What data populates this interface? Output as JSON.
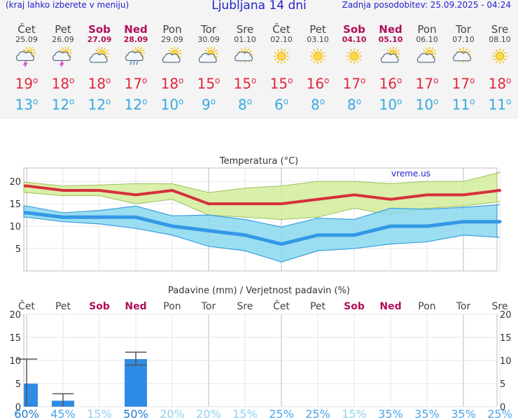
{
  "header": {
    "left_note": "(kraj lahko izberete v meniju)",
    "title": "Ljubljana 14 dni",
    "updated": "Zadnja posodobitev: 25.09.2025 - 04:24"
  },
  "days": [
    {
      "name": "Čet",
      "date": "25.09",
      "weekend": false,
      "icon": "thunderstorm-icon",
      "tmax": "19",
      "tmin": "13"
    },
    {
      "name": "Pet",
      "date": "26.09",
      "weekend": false,
      "icon": "thunderstorm-icon",
      "tmax": "18",
      "tmin": "12"
    },
    {
      "name": "Sob",
      "date": "27.09",
      "weekend": true,
      "icon": "partly-cloudy-icon",
      "tmax": "18",
      "tmin": "12"
    },
    {
      "name": "Ned",
      "date": "28.09",
      "weekend": true,
      "icon": "rain-shower-icon",
      "tmax": "17",
      "tmin": "12"
    },
    {
      "name": "Pon",
      "date": "29.09",
      "weekend": false,
      "icon": "partly-cloudy-icon",
      "tmax": "18",
      "tmin": "10"
    },
    {
      "name": "Tor",
      "date": "30.09",
      "weekend": false,
      "icon": "partly-cloudy-icon",
      "tmax": "15",
      "tmin": "9"
    },
    {
      "name": "Sre",
      "date": "01.10",
      "weekend": false,
      "icon": "sun-small-cloud-icon",
      "tmax": "15",
      "tmin": "8"
    },
    {
      "name": "Čet",
      "date": "02.10",
      "weekend": false,
      "icon": "sun-icon",
      "tmax": "15",
      "tmin": "6"
    },
    {
      "name": "Pet",
      "date": "03.10",
      "weekend": false,
      "icon": "sun-icon",
      "tmax": "16",
      "tmin": "8"
    },
    {
      "name": "Sob",
      "date": "04.10",
      "weekend": true,
      "icon": "sun-icon",
      "tmax": "17",
      "tmin": "8"
    },
    {
      "name": "Ned",
      "date": "05.10",
      "weekend": true,
      "icon": "partly-cloudy-icon",
      "tmax": "16",
      "tmin": "10"
    },
    {
      "name": "Pon",
      "date": "06.10",
      "weekend": false,
      "icon": "partly-cloudy-icon",
      "tmax": "17",
      "tmin": "10"
    },
    {
      "name": "Tor",
      "date": "07.10",
      "weekend": false,
      "icon": "sun-small-cloud-icon",
      "tmax": "17",
      "tmin": "11"
    },
    {
      "name": "Sre",
      "date": "08.10",
      "weekend": false,
      "icon": "sun-icon",
      "tmax": "18",
      "tmin": "11"
    }
  ],
  "colors": {
    "max_line": "#d6303e",
    "max_band": "#d4ec9a",
    "min_line": "#3398e6",
    "min_band": "#8ad8ee",
    "bar": "#2f8ce6",
    "weekend": "#b0105a",
    "pct_dark": "#1e78cc",
    "pct_light": "#8fd0ee"
  },
  "chart_data": [
    {
      "type": "line",
      "title": "Temperatura (°C)",
      "watermark": "vreme.us",
      "x": [
        "25.09",
        "26.09",
        "27.09",
        "28.09",
        "29.09",
        "30.09",
        "01.10",
        "02.10",
        "03.10",
        "04.10",
        "05.10",
        "06.10",
        "07.10",
        "08.10"
      ],
      "series": [
        {
          "values": [
            19,
            18,
            18,
            17,
            18,
            15,
            15,
            15,
            16,
            17,
            16,
            17,
            17,
            18
          ]
        },
        {
          "values": [
            13,
            12,
            12,
            12,
            10,
            9,
            8,
            6,
            8,
            8,
            10,
            10,
            11,
            11
          ]
        }
      ],
      "max_band": {
        "upper": [
          19.8,
          19.0,
          19.2,
          19.5,
          19.5,
          17.5,
          18.5,
          19.0,
          20.0,
          20.0,
          19.5,
          20.0,
          20.0,
          22.0
        ],
        "lower": [
          17.5,
          16.8,
          16.8,
          15.0,
          16.0,
          12.5,
          12.0,
          11.5,
          12.0,
          14.0,
          12.5,
          14.0,
          14.5,
          15.5
        ]
      },
      "min_band": {
        "upper": [
          14.5,
          13.0,
          13.5,
          14.5,
          12.3,
          12.5,
          11.5,
          9.8,
          11.8,
          11.5,
          14.0,
          13.8,
          14.2,
          14.8
        ],
        "lower": [
          12.0,
          11.0,
          10.5,
          9.5,
          8.0,
          5.5,
          4.5,
          2.0,
          4.5,
          5.0,
          6.0,
          6.5,
          8.0,
          7.5
        ]
      },
      "yticks": [
        5,
        10,
        15,
        20
      ],
      "ylim": [
        0,
        23
      ]
    },
    {
      "type": "bar",
      "title": "Padavine (mm) / Verjetnost padavin (%)",
      "categories": [
        "Čet",
        "Pet",
        "Sob",
        "Ned",
        "Pon",
        "Tor",
        "Sre",
        "Čet",
        "Pet",
        "Sob",
        "Ned",
        "Pon",
        "Tor",
        "Sre"
      ],
      "values": [
        5,
        1.3,
        0,
        10.3,
        0,
        0,
        0,
        0,
        0,
        0,
        0,
        0,
        0,
        0
      ],
      "error_high": [
        10.3,
        2.8,
        0,
        11.8,
        0,
        0,
        0,
        0,
        0,
        0,
        0,
        0,
        0,
        0
      ],
      "error_low": [
        0,
        0,
        0,
        9,
        0,
        0,
        0,
        0,
        0,
        0,
        0,
        0,
        0,
        0
      ],
      "probability": [
        "60%",
        "45%",
        "15%",
        "50%",
        "20%",
        "20%",
        "15%",
        "25%",
        "25%",
        "15%",
        "35%",
        "35%",
        "35%",
        "25%"
      ],
      "yticks": [
        0,
        5,
        10,
        15,
        20
      ],
      "ylim": [
        0,
        20
      ]
    }
  ]
}
